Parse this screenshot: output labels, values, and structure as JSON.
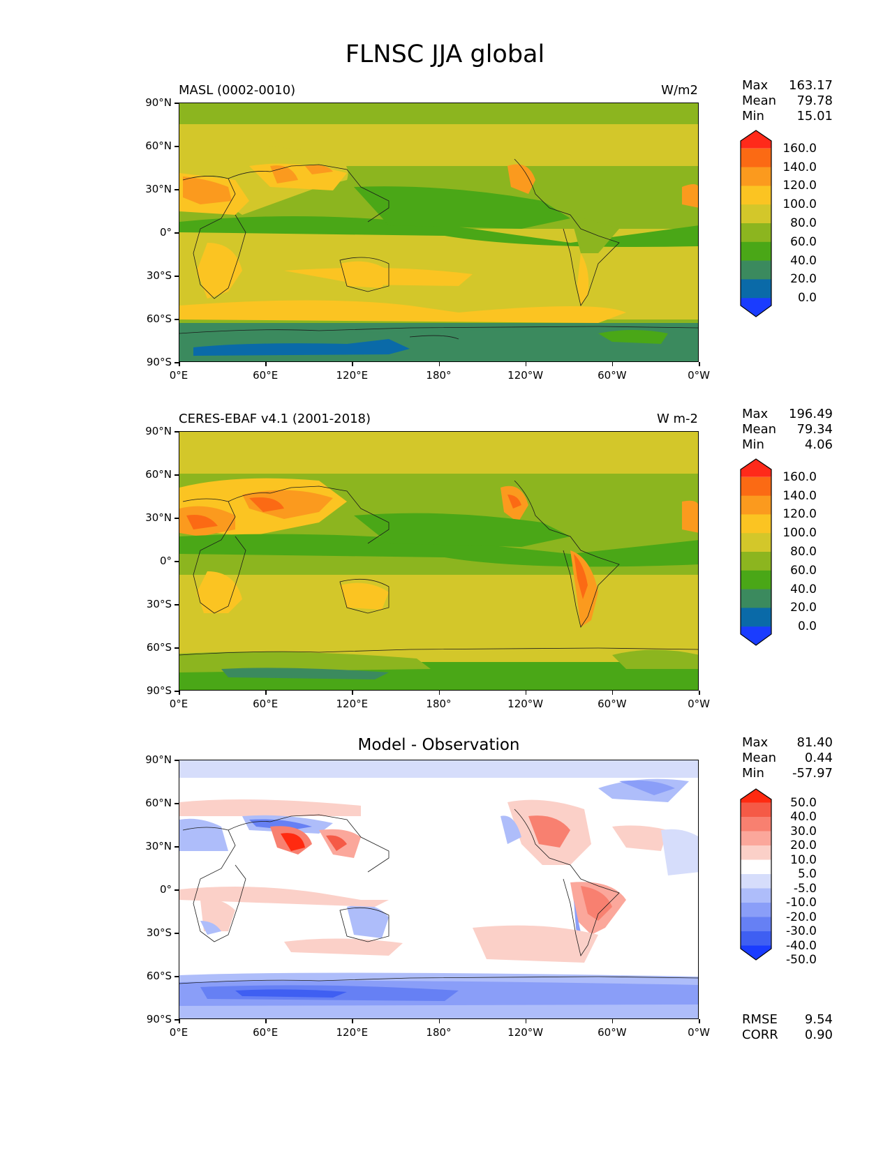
{
  "figure": {
    "title": "FLNSC JJA global"
  },
  "axes": {
    "lat_labels": [
      "90°N",
      "60°N",
      "30°N",
      "0°",
      "30°S",
      "60°S",
      "90°S"
    ],
    "lon_labels": [
      "0°E",
      "60°E",
      "120°E",
      "180°",
      "120°W",
      "60°W",
      "0°W"
    ]
  },
  "panels": [
    {
      "left_title": "MASL (0002-0010)",
      "right_title": "W/m2",
      "stats": [
        {
          "label": "Max",
          "value": "163.17"
        },
        {
          "label": "Mean",
          "value": "79.78"
        },
        {
          "label": "Min",
          "value": "15.01"
        }
      ],
      "colorbar_labels": [
        "160.0",
        "140.0",
        "120.0",
        "100.0",
        "80.0",
        "60.0",
        "40.0",
        "20.0",
        "0.0"
      ]
    },
    {
      "left_title": "CERES-EBAF v4.1 (2001-2018)",
      "right_title": "W m-2",
      "stats": [
        {
          "label": "Max",
          "value": "196.49"
        },
        {
          "label": "Mean",
          "value": "79.34"
        },
        {
          "label": "Min",
          "value": "4.06"
        }
      ],
      "colorbar_labels": [
        "160.0",
        "140.0",
        "120.0",
        "100.0",
        "80.0",
        "60.0",
        "40.0",
        "20.0",
        "0.0"
      ]
    },
    {
      "center_title": "Model - Observation",
      "stats": [
        {
          "label": "Max",
          "value": "81.40"
        },
        {
          "label": "Mean",
          "value": "0.44"
        },
        {
          "label": "Min",
          "value": "-57.97"
        }
      ],
      "colorbar_labels": [
        "50.0",
        "40.0",
        "30.0",
        "20.0",
        "10.0",
        "5.0",
        "-5.0",
        "-10.0",
        "-20.0",
        "-30.0",
        "-40.0",
        "-50.0"
      ],
      "metrics": [
        {
          "label": "RMSE",
          "value": "9.54"
        },
        {
          "label": "CORR",
          "value": "0.90"
        }
      ]
    }
  ],
  "colors": {
    "abs_scale": [
      "#ff2a1a",
      "#fb6a14",
      "#fb9a1e",
      "#fbc422",
      "#d3c72a",
      "#8cb51f",
      "#4aa717",
      "#3b8a5e",
      "#0a6aa8",
      "#1a3cff"
    ],
    "diff_scale": [
      "#ff2a10",
      "#f55a46",
      "#f88070",
      "#fba79b",
      "#fbd0c8",
      "#ffffff",
      "#d6ddfb",
      "#aebdfa",
      "#8a9ef8",
      "#6680f4",
      "#3f5ff2",
      "#1a3cff"
    ]
  }
}
